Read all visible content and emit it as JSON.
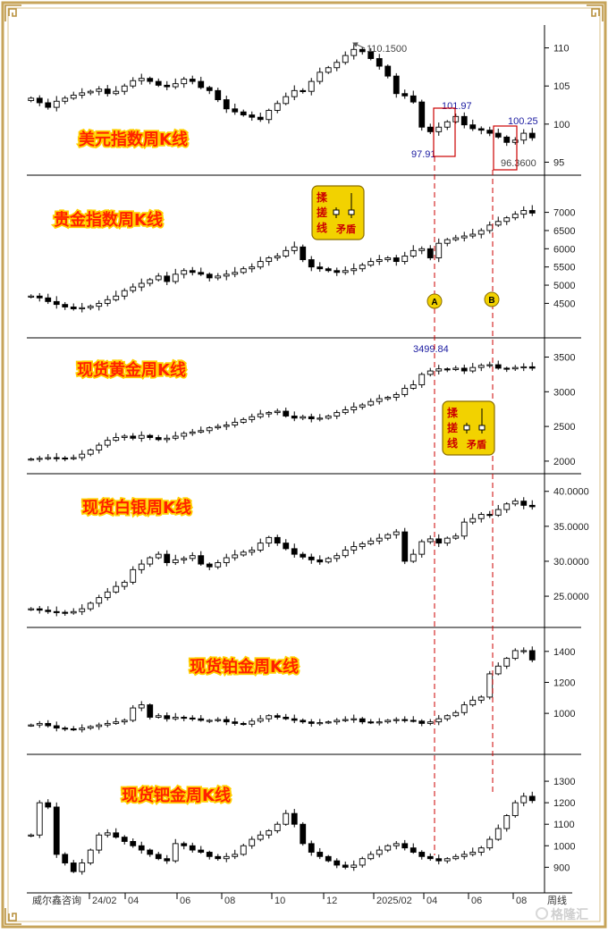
{
  "footer": {
    "source": "威尔鑫咨询",
    "x_ticks": [
      "24/02",
      "04",
      "06",
      "08",
      "10",
      "12",
      "2025/02",
      "04",
      "06",
      "08"
    ],
    "period": "周线",
    "watermark": "格隆汇"
  },
  "markers": {
    "a": "A",
    "b": "B"
  },
  "pattern_box": {
    "line1": "揉",
    "line2": "搓",
    "line3": "线",
    "tag": "矛盾"
  },
  "colors": {
    "title": "#ff2200",
    "title_outline": "#ffd000",
    "dashed": "#cc0000",
    "badge": "#f2d200",
    "annotation": "#1a1aa0",
    "frame": "#c7a45a"
  },
  "chart_data": [
    {
      "type": "candlestick",
      "title": "美元指数周K线",
      "ylim": [
        94,
        113
      ],
      "yticks": [
        110,
        105,
        100,
        95
      ],
      "annotations": [
        {
          "label": "110.1500",
          "value": 110.15
        },
        {
          "label": "101.97",
          "value": 101.97
        },
        {
          "label": "97.91",
          "value": 97.91
        },
        {
          "label": "100.25",
          "value": 100.25
        },
        {
          "label": "96.3600",
          "value": 96.36
        }
      ],
      "closes": [
        103.4,
        102.8,
        102.2,
        103.0,
        103.4,
        103.8,
        104.1,
        104.3,
        104.6,
        104.0,
        104.3,
        105.0,
        105.7,
        106.0,
        105.6,
        105.1,
        104.9,
        105.3,
        105.9,
        105.6,
        104.8,
        104.4,
        103.2,
        102.0,
        101.6,
        101.2,
        100.9,
        100.6,
        101.8,
        102.7,
        103.6,
        104.4,
        104.3,
        105.6,
        106.8,
        107.4,
        108.1,
        109.0,
        109.8,
        109.5,
        108.6,
        107.6,
        106.3,
        104.0,
        103.7,
        102.9,
        99.6,
        99.0,
        99.6,
        100.3,
        101.0,
        99.9,
        99.4,
        99.2,
        98.8,
        98.3,
        97.6,
        97.9,
        98.8,
        98.2
      ]
    },
    {
      "type": "candlestick",
      "title": "贵金指数周K线",
      "ylim": [
        3700,
        7800
      ],
      "yticks": [
        7000,
        6500,
        6000,
        5500,
        5000,
        4500
      ],
      "closes": [
        4700,
        4650,
        4550,
        4470,
        4400,
        4350,
        4380,
        4420,
        4500,
        4600,
        4700,
        4850,
        4950,
        5050,
        5150,
        5250,
        5100,
        5300,
        5400,
        5350,
        5300,
        5200,
        5250,
        5300,
        5350,
        5450,
        5500,
        5650,
        5750,
        5800,
        5950,
        6050,
        5700,
        5500,
        5450,
        5400,
        5350,
        5400,
        5450,
        5550,
        5650,
        5700,
        5750,
        5650,
        5800,
        5950,
        6000,
        5750,
        6150,
        6250,
        6300,
        6350,
        6400,
        6500,
        6650,
        6750,
        6850,
        6950,
        7050,
        6980
      ]
    },
    {
      "type": "candlestick",
      "title": "现货黄金周K线",
      "ylim": [
        1870,
        3700
      ],
      "yticks": [
        3500,
        3000,
        2500,
        2000
      ],
      "annotations": [
        {
          "label": "3499.84",
          "value": 3499.84
        }
      ],
      "closes": [
        2030,
        2040,
        2050,
        2045,
        2035,
        2050,
        2100,
        2160,
        2230,
        2300,
        2340,
        2360,
        2330,
        2370,
        2340,
        2310,
        2330,
        2360,
        2400,
        2420,
        2440,
        2480,
        2500,
        2520,
        2560,
        2600,
        2640,
        2680,
        2700,
        2720,
        2650,
        2620,
        2640,
        2610,
        2620,
        2650,
        2700,
        2740,
        2780,
        2810,
        2860,
        2900,
        2920,
        2960,
        3050,
        3100,
        3250,
        3300,
        3330,
        3320,
        3340,
        3300,
        3350,
        3380,
        3390,
        3340,
        3330,
        3350,
        3360,
        3340
      ]
    },
    {
      "type": "candlestick",
      "title": "现货白银周K线",
      "ylim": [
        21.3,
        41.5
      ],
      "yticks": [
        40,
        35,
        30,
        25
      ],
      "closes": [
        23.2,
        23.0,
        22.8,
        22.7,
        22.6,
        22.8,
        23.2,
        24.0,
        24.8,
        25.6,
        26.4,
        27.0,
        28.8,
        29.6,
        30.5,
        31.0,
        29.8,
        30.2,
        30.4,
        30.8,
        29.6,
        29.2,
        29.8,
        30.5,
        30.9,
        31.3,
        31.6,
        32.6,
        33.4,
        32.6,
        31.8,
        31.0,
        30.6,
        30.2,
        29.9,
        30.4,
        30.8,
        31.6,
        32.1,
        32.5,
        32.9,
        33.3,
        33.8,
        34.2,
        30.0,
        31.0,
        32.8,
        33.2,
        32.6,
        33.3,
        33.6,
        35.6,
        36.1,
        36.7,
        36.6,
        37.4,
        38.2,
        38.6,
        38.0,
        37.8
      ]
    },
    {
      "type": "candlestick",
      "title": "现货铂金周K线",
      "ylim": [
        770,
        1520
      ],
      "yticks": [
        1400,
        1200,
        1000
      ],
      "closes": [
        925,
        935,
        920,
        905,
        900,
        895,
        905,
        915,
        925,
        935,
        945,
        955,
        1035,
        1055,
        975,
        985,
        965,
        975,
        970,
        965,
        955,
        955,
        960,
        945,
        935,
        930,
        950,
        965,
        985,
        975,
        965,
        955,
        945,
        935,
        940,
        945,
        955,
        960,
        965,
        945,
        940,
        945,
        955,
        960,
        955,
        950,
        935,
        945,
        965,
        985,
        1005,
        1055,
        1085,
        1105,
        1255,
        1305,
        1355,
        1405,
        1405,
        1345
      ]
    },
    {
      "type": "candlestick",
      "title": "现货钯金周K线",
      "ylim": [
        810,
        1400
      ],
      "yticks": [
        1300,
        1200,
        1100,
        1000,
        900
      ],
      "closes": [
        1050,
        1200,
        1180,
        960,
        920,
        880,
        920,
        980,
        1050,
        1060,
        1040,
        1020,
        1000,
        980,
        960,
        940,
        930,
        1010,
        1000,
        980,
        970,
        950,
        940,
        950,
        960,
        1000,
        1030,
        1050,
        1070,
        1100,
        1150,
        1100,
        1010,
        970,
        950,
        930,
        910,
        900,
        910,
        940,
        960,
        980,
        1000,
        1010,
        990,
        970,
        950,
        940,
        930,
        940,
        950,
        960,
        970,
        990,
        1030,
        1080,
        1140,
        1200,
        1230,
        1210
      ]
    }
  ]
}
